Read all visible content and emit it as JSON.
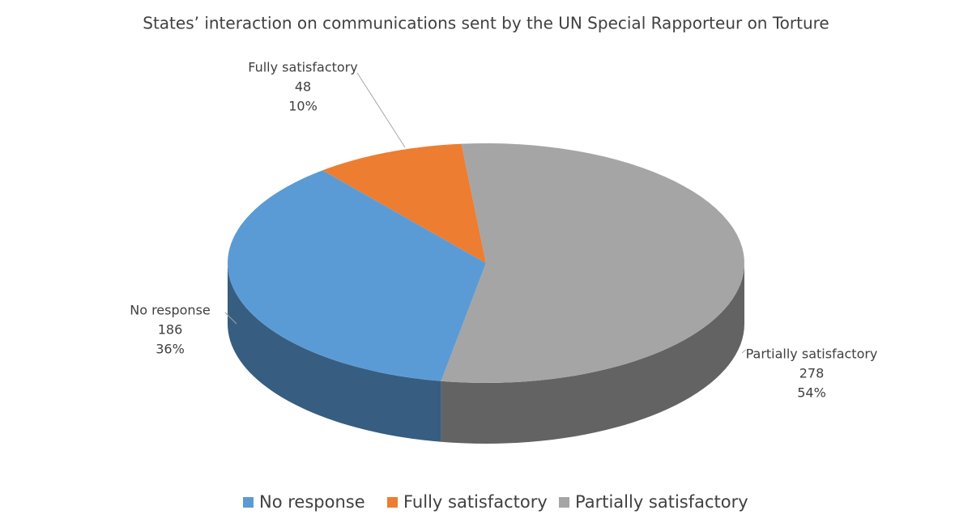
{
  "chart_data": {
    "type": "pie3d",
    "title": "States’ interaction on communications sent by the UN Special Rapporteur on Torture",
    "categories": [
      "No response",
      "Fully satisfactory",
      "Partially satisfactory"
    ],
    "values": [
      186,
      48,
      278
    ],
    "percent_labels": [
      "36%",
      "10%",
      "54%"
    ],
    "colors": [
      "#5b9bd5",
      "#ed7d31",
      "#a5a5a5"
    ],
    "legend": "bottom"
  }
}
